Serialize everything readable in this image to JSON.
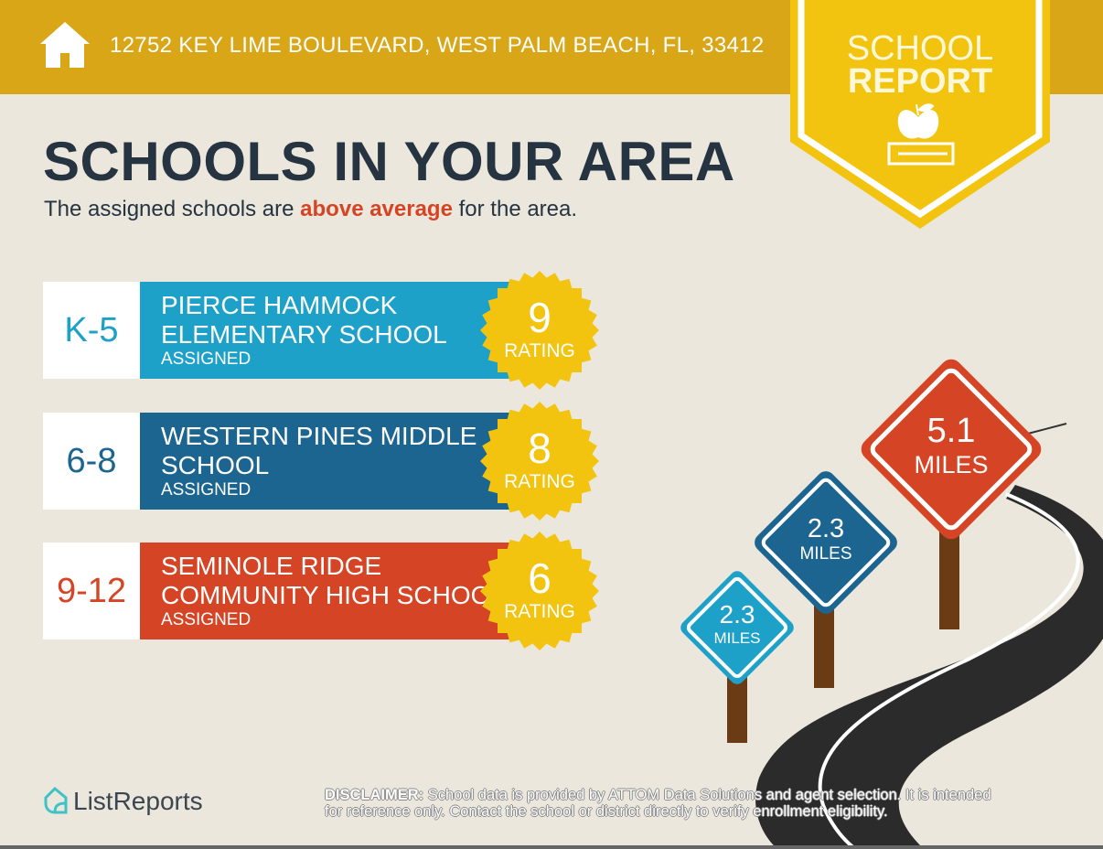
{
  "header": {
    "address": "12752 KEY LIME BOULEVARD, WEST PALM BEACH, FL, 33412",
    "icon": "house-icon"
  },
  "badge": {
    "line1": "SCHOOL",
    "line2": "REPORT",
    "icon": "apple-book-icon"
  },
  "title": "SCHOOLS IN YOUR AREA",
  "subtitle": {
    "before": "The assigned schools are ",
    "highlight": "above average",
    "after": " for the area."
  },
  "schools": [
    {
      "grade": "K-5",
      "name_line1": "PIERCE HAMMOCK",
      "name_line2": "ELEMENTARY SCHOOL",
      "status": "ASSIGNED",
      "rating": "9",
      "rating_label": "RATING",
      "color": "#1ea1c9"
    },
    {
      "grade": "6-8",
      "name_line1": "WESTERN PINES MIDDLE",
      "name_line2": "SCHOOL",
      "status": "ASSIGNED",
      "rating": "8",
      "rating_label": "RATING",
      "color": "#1b6590"
    },
    {
      "grade": "9-12",
      "name_line1": "SEMINOLE RIDGE",
      "name_line2": "COMMUNITY HIGH SCHOOL",
      "status": "ASSIGNED",
      "rating": "6",
      "rating_label": "RATING",
      "color": "#d54424"
    }
  ],
  "signs": [
    {
      "distance": "2.3",
      "unit": "MILES",
      "color": "#1ea1c9"
    },
    {
      "distance": "2.3",
      "unit": "MILES",
      "color": "#1b6590"
    },
    {
      "distance": "5.1",
      "unit": "MILES",
      "color": "#d54424"
    }
  ],
  "footer": {
    "logo": "ListReports",
    "disclaimer_label": "DISCLAIMER:",
    "disclaimer_line1": "School data is provided by ATTOM Data Solutions and agent selection. It is intended",
    "disclaimer_line2": "for reference only. Contact the school or district directly to verify enrollment eligibility."
  },
  "colors": {
    "header": "#d8a617",
    "badge": "#f2c40f",
    "background": "#ebe7dc",
    "heading": "#263340",
    "accent": "#d54424"
  }
}
